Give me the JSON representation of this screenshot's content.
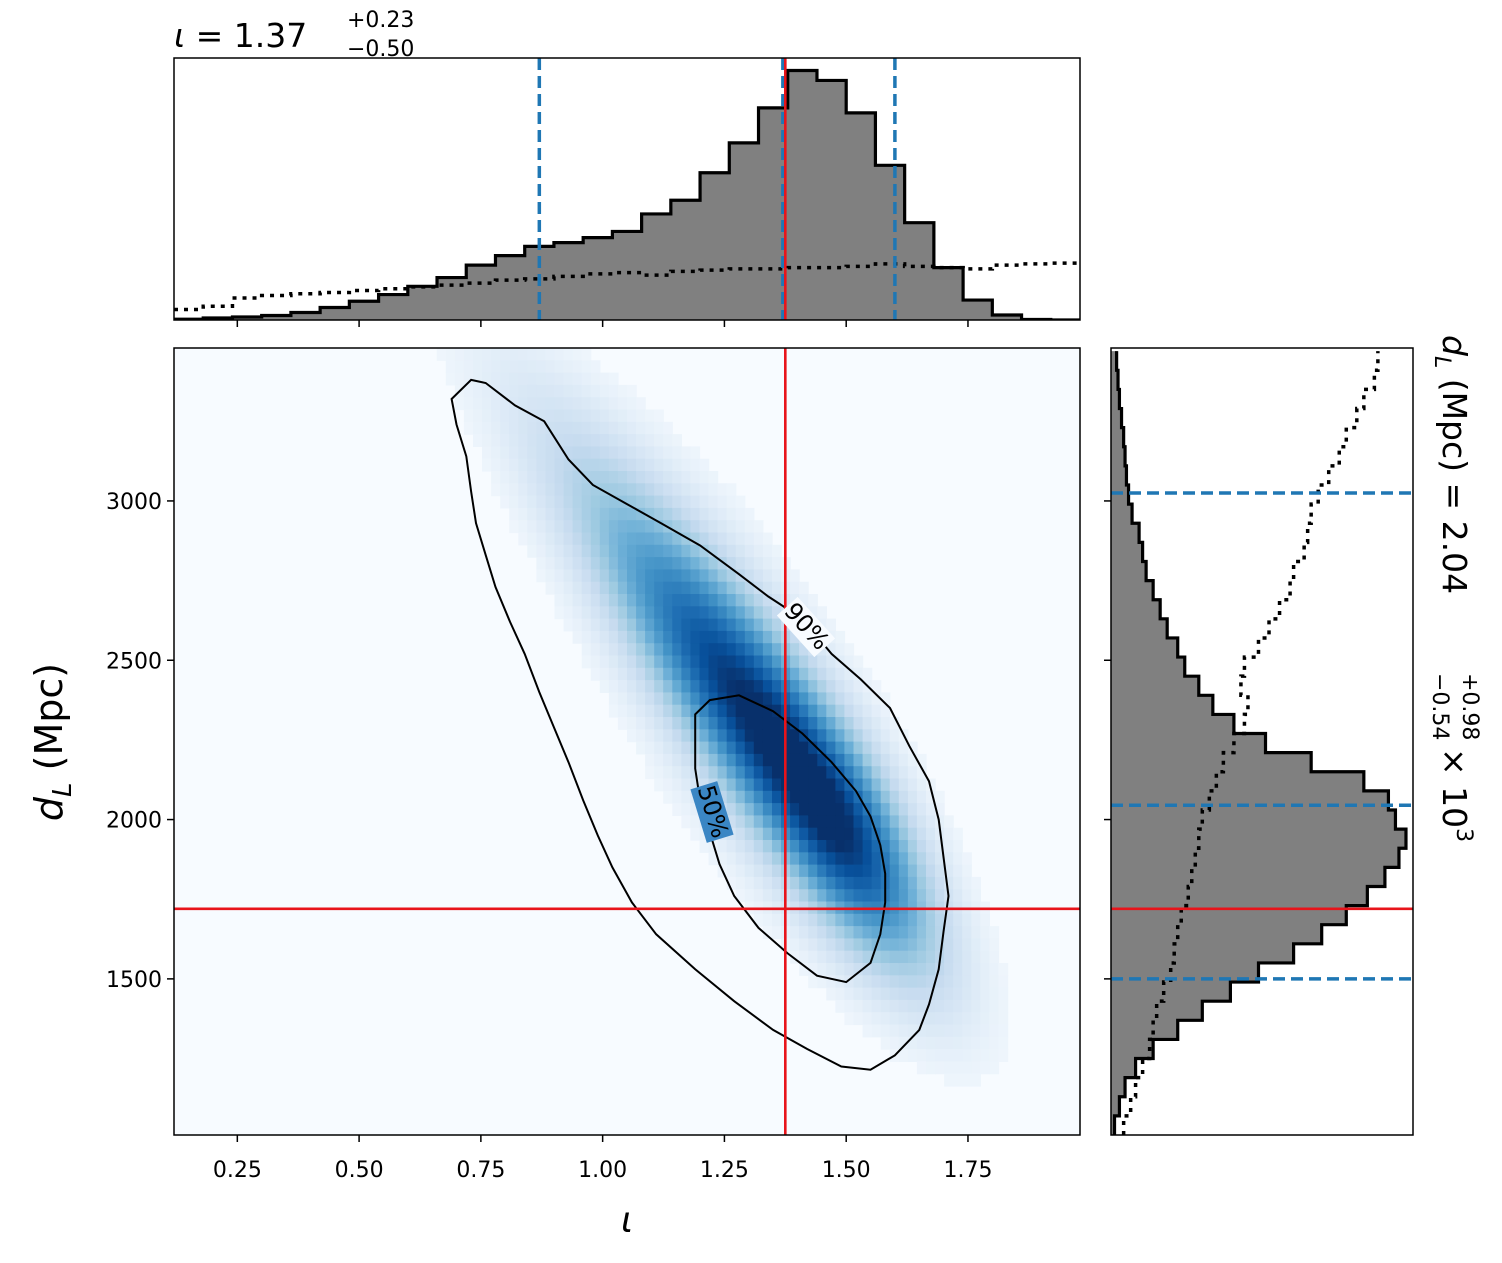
{
  "chart_data": {
    "type": "corner",
    "title_top": {
      "prefix": "ι = ",
      "value": "1.37",
      "err_plus": "+0.23",
      "err_minus": "−0.50"
    },
    "title_right": {
      "prefix": "d",
      "sub": "L",
      "mid": " (Mpc) = ",
      "value": "2.04",
      "err_plus": "+0.98",
      "err_minus": "−0.54",
      "suffix": " × 10",
      "exp": "3"
    },
    "xlabel": "ι",
    "ylabel": {
      "main": "d",
      "sub": "L",
      "unit": " (Mpc)"
    },
    "xlim": [
      0.12,
      1.98
    ],
    "ylim": [
      1010,
      3480
    ],
    "xticks": [
      0.25,
      0.5,
      0.75,
      1.0,
      1.25,
      1.5,
      1.75
    ],
    "xtick_labels": [
      "0.25",
      "0.50",
      "0.75",
      "1.00",
      "1.25",
      "1.50",
      "1.75"
    ],
    "yticks": [
      1500,
      2000,
      2500,
      3000
    ],
    "ytick_labels": [
      "1500",
      "2000",
      "2500",
      "3000"
    ],
    "injection": {
      "x": 1.375,
      "y": 1720
    },
    "x_quantiles": [
      0.87,
      1.37,
      1.6
    ],
    "y_quantiles": [
      1500,
      2045,
      3025
    ],
    "contour_labels": [
      "90%",
      "50%"
    ],
    "hist_x": {
      "bins": [
        0.12,
        0.18,
        0.24,
        0.3,
        0.36,
        0.42,
        0.48,
        0.54,
        0.6,
        0.66,
        0.72,
        0.78,
        0.84,
        0.9,
        0.96,
        1.02,
        1.08,
        1.14,
        1.2,
        1.26,
        1.32,
        1.38,
        1.44,
        1.5,
        1.56,
        1.62,
        1.68,
        1.74,
        1.8,
        1.86,
        1.92,
        1.98
      ],
      "counts": [
        0.3,
        0.8,
        1.2,
        1.8,
        3.0,
        5.0,
        7.5,
        10.2,
        13.5,
        17.0,
        22.0,
        25.8,
        29.5,
        31.0,
        33.0,
        35.5,
        42.5,
        48.0,
        59.0,
        71.0,
        85.0,
        100.0,
        96.0,
        83.0,
        62.0,
        39.0,
        21.0,
        8.0,
        2.0,
        0.2,
        0.0
      ],
      "prior": [
        4.2,
        5.5,
        8.8,
        9.8,
        10.5,
        11.0,
        11.8,
        12.5,
        13.3,
        14.0,
        14.8,
        16.0,
        16.5,
        17.5,
        18.5,
        19.0,
        18.0,
        19.5,
        20.0,
        20.5,
        20.5,
        21.0,
        21.0,
        21.5,
        22.5,
        21.5,
        21.0,
        20.5,
        22.0,
        22.5,
        22.8
      ],
      "max": 105
    },
    "hist_y": {
      "bins": [
        1010,
        1070,
        1130,
        1190,
        1250,
        1310,
        1370,
        1430,
        1490,
        1550,
        1610,
        1670,
        1730,
        1790,
        1850,
        1910,
        1970,
        2030,
        2090,
        2150,
        2210,
        2270,
        2330,
        2390,
        2450,
        2510,
        2570,
        2630,
        2690,
        2750,
        2810,
        2870,
        2930,
        2990,
        3050,
        3110,
        3170,
        3230,
        3290,
        3350,
        3410,
        3470
      ],
      "counts": [
        0.5,
        1.2,
        2.0,
        3.5,
        6.0,
        9.5,
        13.0,
        17.0,
        21.0,
        26.0,
        30.0,
        33.5,
        36.5,
        39.0,
        41.0,
        42.0,
        40.5,
        39.5,
        36.0,
        28.5,
        22.0,
        17.5,
        14.5,
        12.5,
        10.5,
        9.5,
        8.0,
        7.0,
        6.0,
        5.0,
        4.5,
        4.0,
        3.0,
        2.5,
        2.2,
        2.0,
        1.8,
        1.5,
        1.2,
        1.0,
        0.8
      ],
      "prior": [
        1.8,
        2.8,
        3.5,
        4.5,
        5.5,
        6.0,
        6.5,
        7.5,
        8.5,
        9.0,
        9.5,
        10.0,
        11.0,
        11.5,
        12.0,
        12.5,
        13.0,
        14.0,
        15.0,
        16.0,
        17.5,
        19.0,
        19.5,
        18.5,
        19.0,
        21.0,
        22.5,
        24.0,
        25.5,
        26.0,
        27.5,
        28.0,
        28.5,
        29.5,
        31.0,
        32.5,
        33.5,
        35.0,
        36.0,
        37.5,
        38.0
      ],
      "max": 43
    },
    "density": {
      "mean": [
        1.45,
        2050
      ],
      "major_dir": [
        -0.7,
        1400
      ],
      "sd_major": 0.38,
      "sd_minor": 0.048,
      "tail_skew": 0.9
    },
    "contours": {
      "c90": [
        [
          0.73,
          3380
        ],
        [
          0.76,
          3370
        ],
        [
          0.82,
          3300
        ],
        [
          0.88,
          3250
        ],
        [
          0.93,
          3130
        ],
        [
          0.98,
          3050
        ],
        [
          1.05,
          2990
        ],
        [
          1.12,
          2930
        ],
        [
          1.2,
          2860
        ],
        [
          1.28,
          2770
        ],
        [
          1.34,
          2700
        ],
        [
          1.41,
          2630
        ],
        [
          1.47,
          2520
        ],
        [
          1.53,
          2440
        ],
        [
          1.59,
          2350
        ],
        [
          1.63,
          2230
        ],
        [
          1.67,
          2120
        ],
        [
          1.69,
          2000
        ],
        [
          1.7,
          1880
        ],
        [
          1.71,
          1760
        ],
        [
          1.7,
          1650
        ],
        [
          1.69,
          1530
        ],
        [
          1.67,
          1420
        ],
        [
          1.65,
          1340
        ],
        [
          1.6,
          1260
        ],
        [
          1.55,
          1215
        ],
        [
          1.49,
          1225
        ],
        [
          1.42,
          1280
        ],
        [
          1.35,
          1340
        ],
        [
          1.27,
          1430
        ],
        [
          1.19,
          1530
        ],
        [
          1.11,
          1640
        ],
        [
          1.06,
          1740
        ],
        [
          1.02,
          1850
        ],
        [
          0.99,
          1950
        ],
        [
          0.96,
          2060
        ],
        [
          0.93,
          2180
        ],
        [
          0.9,
          2290
        ],
        [
          0.87,
          2400
        ],
        [
          0.84,
          2520
        ],
        [
          0.81,
          2620
        ],
        [
          0.78,
          2730
        ],
        [
          0.76,
          2830
        ],
        [
          0.74,
          2930
        ],
        [
          0.73,
          3030
        ],
        [
          0.72,
          3140
        ],
        [
          0.7,
          3240
        ],
        [
          0.69,
          3320
        ],
        [
          0.73,
          3380
        ]
      ],
      "c50": [
        [
          1.19,
          2330
        ],
        [
          1.22,
          2375
        ],
        [
          1.28,
          2390
        ],
        [
          1.35,
          2340
        ],
        [
          1.41,
          2270
        ],
        [
          1.47,
          2180
        ],
        [
          1.52,
          2090
        ],
        [
          1.55,
          2010
        ],
        [
          1.57,
          1920
        ],
        [
          1.58,
          1830
        ],
        [
          1.58,
          1740
        ],
        [
          1.57,
          1640
        ],
        [
          1.55,
          1550
        ],
        [
          1.5,
          1490
        ],
        [
          1.44,
          1510
        ],
        [
          1.38,
          1580
        ],
        [
          1.32,
          1660
        ],
        [
          1.27,
          1760
        ],
        [
          1.24,
          1860
        ],
        [
          1.22,
          1960
        ],
        [
          1.2,
          2060
        ],
        [
          1.19,
          2160
        ],
        [
          1.19,
          2260
        ],
        [
          1.19,
          2330
        ]
      ]
    }
  }
}
